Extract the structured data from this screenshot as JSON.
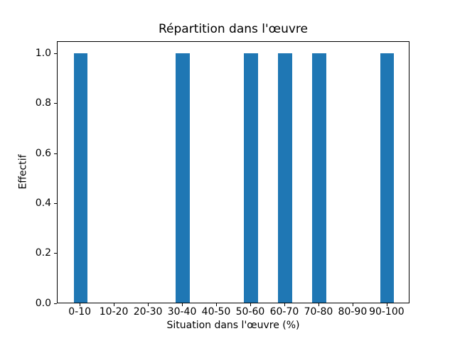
{
  "chart_data": {
    "type": "bar",
    "title": "Répartition dans l'œuvre",
    "xlabel": "Situation dans l'œuvre (%)",
    "ylabel": "Effectif",
    "categories": [
      "0-10",
      "10-20",
      "20-30",
      "30-40",
      "40-50",
      "50-60",
      "60-70",
      "70-80",
      "80-90",
      "90-100"
    ],
    "values": [
      1,
      0,
      0,
      1,
      0,
      1,
      1,
      1,
      0,
      1
    ],
    "ytick_labels": [
      "0.0",
      "0.2",
      "0.4",
      "0.6",
      "0.8",
      "1.0"
    ],
    "yticks": [
      0.0,
      0.2,
      0.4,
      0.6,
      0.8,
      1.0
    ],
    "ylim": [
      0,
      1.05
    ],
    "x_margin_frac": 0.05,
    "bar_width": 0.4,
    "bar_color": "#1f77b4",
    "axis_color": "#000000",
    "background_color": "#ffffff",
    "grid": false,
    "legend_position": "none"
  }
}
